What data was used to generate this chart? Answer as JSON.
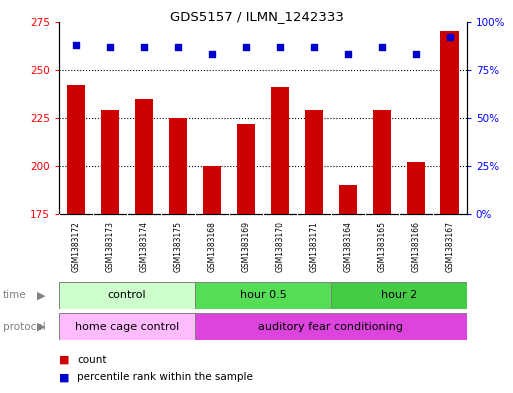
{
  "title": "GDS5157 / ILMN_1242333",
  "samples": [
    "GSM1383172",
    "GSM1383173",
    "GSM1383174",
    "GSM1383175",
    "GSM1383168",
    "GSM1383169",
    "GSM1383170",
    "GSM1383171",
    "GSM1383164",
    "GSM1383165",
    "GSM1383166",
    "GSM1383167"
  ],
  "bar_values": [
    242,
    229,
    235,
    225,
    200,
    222,
    241,
    229,
    190,
    229,
    202,
    270
  ],
  "percentile_values": [
    88,
    87,
    87,
    87,
    83,
    87,
    87,
    87,
    83,
    87,
    83,
    92
  ],
  "bar_color": "#cc0000",
  "dot_color": "#0000cc",
  "ylim_left": [
    175,
    275
  ],
  "ylim_right": [
    0,
    100
  ],
  "yticks_left": [
    175,
    200,
    225,
    250,
    275
  ],
  "yticks_right": [
    0,
    25,
    50,
    75,
    100
  ],
  "ytick_labels_right": [
    "0%",
    "25%",
    "50%",
    "75%",
    "100%"
  ],
  "grid_values": [
    200,
    225,
    250
  ],
  "time_groups": [
    {
      "label": "control",
      "start": 0,
      "end": 4,
      "color": "#ccffcc"
    },
    {
      "label": "hour 0.5",
      "start": 4,
      "end": 8,
      "color": "#55dd55"
    },
    {
      "label": "hour 2",
      "start": 8,
      "end": 12,
      "color": "#44cc44"
    }
  ],
  "protocol_groups": [
    {
      "label": "home cage control",
      "start": 0,
      "end": 4,
      "color": "#ffbbff"
    },
    {
      "label": "auditory fear conditioning",
      "start": 4,
      "end": 12,
      "color": "#dd44dd"
    }
  ],
  "xtick_bg_color": "#cccccc",
  "legend_count_color": "#cc0000",
  "legend_dot_color": "#0000cc",
  "legend_count_label": "count",
  "legend_percentile_label": "percentile rank within the sample",
  "background_color": "#ffffff"
}
